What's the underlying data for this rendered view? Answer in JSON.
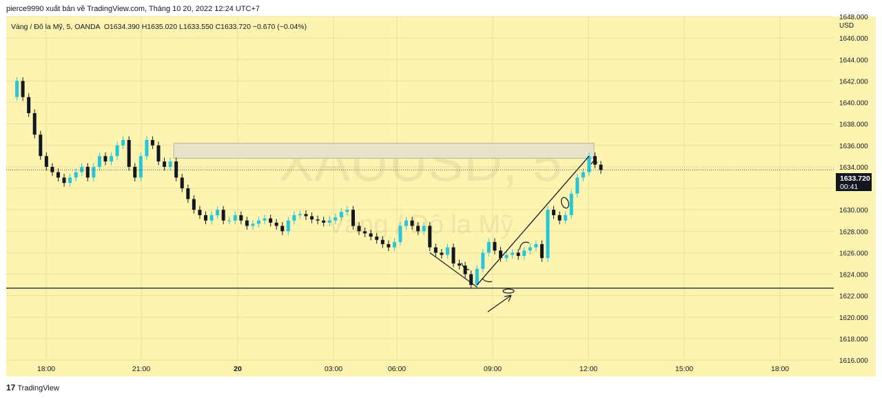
{
  "header": {
    "publisher_line": "pierce9990 xuất bản về TradingView.com, Tháng 10 20, 2022 12:24 UTC+7"
  },
  "legend": {
    "symbol_desc": "Vàng / Đô la Mỹ, 5, OANDA",
    "open_text": "O1634.390",
    "high_text": "H1635.020",
    "low_text": "L1633.550",
    "close_text": "C1633.720",
    "change_text": "−0.670 (−0.04%)"
  },
  "watermark": {
    "symbol": "XAUUSD, 5",
    "description": "Vàng / Đô la Mỹ"
  },
  "footer": {
    "logo_glyph": "17",
    "brand": "TradingView"
  },
  "colors": {
    "background": "#fcf4b0",
    "up_candle": "#26c6da",
    "down_candle": "#131722",
    "zone_fill": "#e6e3c8",
    "price_label_bg": "#131722"
  },
  "chart_data": {
    "type": "candlestick",
    "symbol": "XAUUSD",
    "interval": "5",
    "currency": "USD",
    "ylim": [
      1616,
      1648
    ],
    "y_ticks": [
      "1616.000",
      "1618.000",
      "1620.000",
      "1622.000",
      "1624.000",
      "1626.000",
      "1628.000",
      "1630.000",
      "1632.000",
      "1634.000",
      "1636.000",
      "1638.000",
      "1640.000",
      "1642.000",
      "1644.000",
      "1646.000",
      "1648.000"
    ],
    "x_ticks": [
      "18:00",
      "21:00",
      "20",
      "03:00",
      "06:00",
      "09:00",
      "12:00",
      "15:00",
      "18:00"
    ],
    "last_price": "1633.720",
    "countdown": "00:41",
    "grid": true,
    "price_path": [
      [
        0,
        1640.5
      ],
      [
        1,
        1642
      ],
      [
        2,
        1640.5
      ],
      [
        3,
        1639
      ],
      [
        4,
        1637
      ],
      [
        5,
        1635
      ],
      [
        6,
        1634
      ],
      [
        7,
        1633.5
      ],
      [
        8,
        1633
      ],
      [
        9,
        1632.5
      ],
      [
        10,
        1633
      ],
      [
        11,
        1633.5
      ],
      [
        12,
        1634
      ],
      [
        13,
        1633
      ],
      [
        14,
        1634
      ],
      [
        15,
        1635
      ],
      [
        16,
        1634.5
      ],
      [
        17,
        1635
      ],
      [
        18,
        1636
      ],
      [
        19,
        1636.5
      ],
      [
        20,
        1634
      ],
      [
        21,
        1633
      ],
      [
        22,
        1635
      ],
      [
        23,
        1636.5
      ],
      [
        24,
        1636
      ],
      [
        25,
        1634.5
      ],
      [
        26,
        1634
      ],
      [
        27,
        1634.5
      ],
      [
        28,
        1633
      ],
      [
        29,
        1632
      ],
      [
        30,
        1631
      ],
      [
        31,
        1630
      ],
      [
        32,
        1629.5
      ],
      [
        33,
        1629
      ],
      [
        34,
        1629.5
      ],
      [
        35,
        1630
      ],
      [
        36,
        1629
      ],
      [
        37,
        1629
      ],
      [
        38,
        1629.5
      ],
      [
        39,
        1629
      ],
      [
        40,
        1628.5
      ],
      [
        41,
        1628.7
      ],
      [
        42,
        1629
      ],
      [
        43,
        1629.2
      ],
      [
        44,
        1628.8
      ],
      [
        45,
        1628.5
      ],
      [
        46,
        1628
      ],
      [
        47,
        1629
      ],
      [
        48,
        1629.5
      ],
      [
        49,
        1629.6
      ],
      [
        50,
        1629.4
      ],
      [
        51,
        1629.1
      ],
      [
        52,
        1629
      ],
      [
        53,
        1628.8
      ],
      [
        54,
        1629
      ],
      [
        55,
        1629.3
      ],
      [
        56,
        1629.8
      ],
      [
        57,
        1630
      ],
      [
        58,
        1628.5
      ],
      [
        59,
        1628
      ],
      [
        60,
        1627.8
      ],
      [
        61,
        1627.5
      ],
      [
        62,
        1627.2
      ],
      [
        63,
        1626.8
      ],
      [
        64,
        1626.5
      ],
      [
        65,
        1627
      ],
      [
        66,
        1628.5
      ],
      [
        67,
        1629
      ],
      [
        68,
        1628.5
      ],
      [
        69,
        1628
      ],
      [
        70,
        1628.5
      ],
      [
        71,
        1626.5
      ],
      [
        72,
        1626
      ],
      [
        73,
        1625.8
      ],
      [
        74,
        1626.5
      ],
      [
        75,
        1625
      ],
      [
        76,
        1624.8
      ],
      [
        77,
        1624
      ],
      [
        78,
        1623
      ],
      [
        79,
        1624.5
      ],
      [
        80,
        1626
      ],
      [
        81,
        1627
      ],
      [
        82,
        1626.2
      ],
      [
        83,
        1625.5
      ],
      [
        84,
        1625.8
      ],
      [
        85,
        1626
      ],
      [
        86,
        1625.7
      ],
      [
        87,
        1626.2
      ],
      [
        88,
        1626.5
      ],
      [
        89,
        1626.8
      ],
      [
        90,
        1625.5
      ],
      [
        91,
        1630
      ],
      [
        92,
        1629.5
      ],
      [
        93,
        1629
      ],
      [
        94,
        1629.5
      ],
      [
        95,
        1631.5
      ],
      [
        96,
        1633
      ],
      [
        97,
        1633.5
      ],
      [
        98,
        1635
      ],
      [
        99,
        1634.2
      ],
      [
        100,
        1633.7
      ]
    ],
    "drawings": {
      "support_line": 1622.7,
      "resistance_zone": [
        1634.8,
        1636.2
      ],
      "trendline": [
        [
          79,
          1623
        ],
        [
          98,
          1635
        ]
      ],
      "descending_line": [
        [
          71,
          1626
        ],
        [
          79,
          1622.8
        ]
      ]
    }
  }
}
